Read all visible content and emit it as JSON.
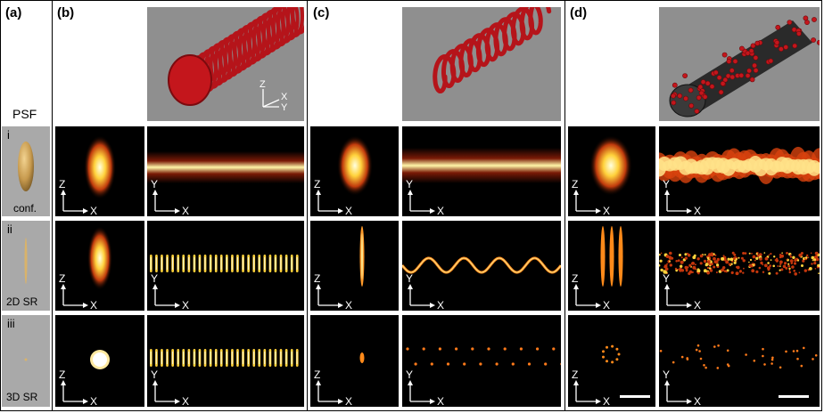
{
  "panel_labels": {
    "a": "(a)",
    "b": "(b)",
    "c": "(c)",
    "d": "(d)"
  },
  "psf_heading": "PSF",
  "rows": [
    {
      "tag": "i",
      "name": "conf."
    },
    {
      "tag": "ii",
      "name": "2D SR"
    },
    {
      "tag": "iii",
      "name": "3D SR"
    }
  ],
  "axes": {
    "z": "Z",
    "x": "X",
    "y": "Y"
  },
  "colors": {
    "tube": "#c4161c",
    "render_bg": "#8f8f8f",
    "hot": "#ffd23c",
    "bead_bg": "#222222"
  }
}
